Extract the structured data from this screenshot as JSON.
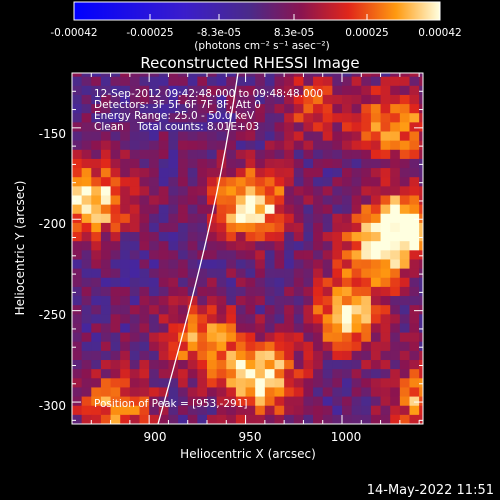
{
  "chart_data": {
    "type": "heatmap",
    "title": "Reconstructed RHESSI Image",
    "xlabel": "Heliocentric X (arcsec)",
    "ylabel": "Heliocentric Y (arcsec)",
    "x_ticks": [
      "900",
      "950",
      "1000"
    ],
    "y_ticks": [
      "-150",
      "-200",
      "-250",
      "-300"
    ],
    "xlim": [
      860,
      1042
    ],
    "ylim": [
      -312,
      -120
    ],
    "colorbar": {
      "ticks": [
        "-0.00042",
        "-0.00025",
        "-8.3e-05",
        "8.3e-05",
        "0.00025",
        "0.00042"
      ],
      "range": [
        -0.00042,
        0.00042
      ],
      "unit_label": "(photons cm⁻² s⁻¹ asec⁻²)"
    },
    "annotations": {
      "time_range": "12-Sep-2012 09:42:48.000 to 09:48:48.000",
      "detectors": "Detectors: 3F 5F 6F 7F 8F, Att 0",
      "energy": "Energy Range: 25.0 - 50.0 keV",
      "clean": "Clean    Total counts: 8.01E+03",
      "peak": "Position of Peak = [953,-291]"
    },
    "hotspots": [
      {
        "x": 950,
        "y": -195,
        "v": 0.00042
      },
      {
        "x": 868,
        "y": -192,
        "v": 0.0004
      },
      {
        "x": 1030,
        "y": -205,
        "v": 0.00036
      },
      {
        "x": 1025,
        "y": -150,
        "v": 0.0003
      },
      {
        "x": 1000,
        "y": -255,
        "v": 0.00034
      },
      {
        "x": 955,
        "y": -290,
        "v": 0.00042
      },
      {
        "x": 925,
        "y": -268,
        "v": 0.0003
      },
      {
        "x": 880,
        "y": -305,
        "v": 0.00028
      },
      {
        "x": 1040,
        "y": -300,
        "v": 0.0003
      },
      {
        "x": 1015,
        "y": -220,
        "v": 0.00028
      },
      {
        "x": 982,
        "y": -140,
        "v": 0.0002
      }
    ]
  },
  "footer": {
    "datestamp": "14-May-2022 11:51"
  }
}
